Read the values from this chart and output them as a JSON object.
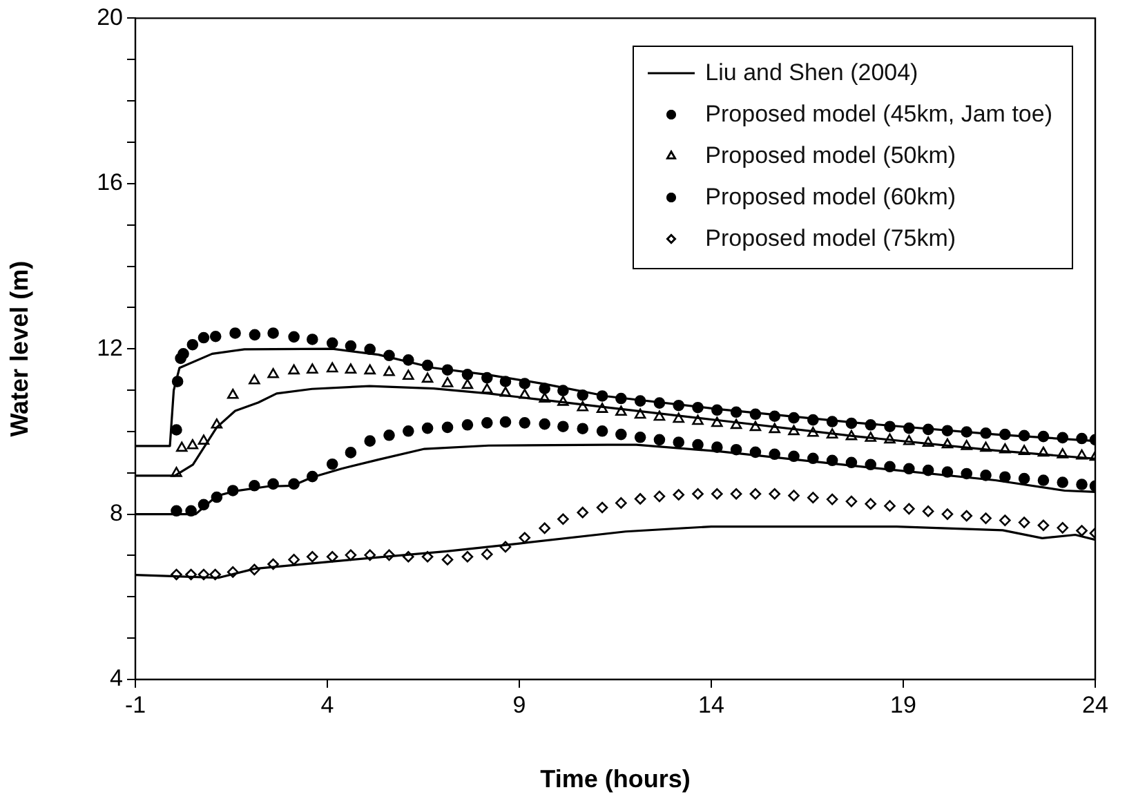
{
  "chart_data": {
    "type": "line",
    "xlabel": "Time (hours)",
    "ylabel": "Water level (m)",
    "xlim": [
      -1,
      24
    ],
    "xticks": [
      -1,
      4,
      9,
      14,
      19,
      24
    ],
    "ylim": [
      4,
      20
    ],
    "yticks": [
      4,
      {
        "value": 5,
        "label": null
      },
      {
        "value": 6,
        "label": null
      },
      {
        "value": 7,
        "label": null
      },
      8,
      {
        "value": 9,
        "label": null
      },
      {
        "value": 10,
        "label": null
      },
      {
        "value": 11,
        "label": null
      },
      12,
      {
        "value": 13,
        "label": null
      },
      {
        "value": 14,
        "label": null
      },
      {
        "value": 15,
        "label": null
      },
      16,
      {
        "value": 17,
        "label": null
      },
      {
        "value": 18,
        "label": null
      },
      {
        "value": 19,
        "label": null
      },
      20
    ],
    "grid": false,
    "legend": "top right",
    "series": [
      {
        "name": "Liu and Shen (2004)",
        "marker": "none",
        "line_style": "solid",
        "color": "#000000",
        "x": [
          -1,
          -0.1,
          0,
          0.15,
          1.0,
          1.84,
          4.13,
          5.33,
          6.77,
          8.2,
          9.66,
          11.3,
          14.2,
          17.8,
          21.4,
          24
        ],
        "values": [
          9.65,
          9.65,
          11.0,
          11.54,
          11.88,
          11.99,
          12.0,
          11.86,
          11.54,
          11.37,
          11.15,
          10.85,
          10.54,
          10.21,
          9.93,
          9.77
        ]
      },
      {
        "marker": "none",
        "line_style": "solid",
        "color": "#000000",
        "x": [
          -1,
          0.03,
          0.5,
          1.12,
          1.6,
          2.2,
          2.68,
          3.6,
          5.1,
          6.77,
          8.2,
          9.66,
          11.3,
          14.2,
          17.8,
          21.4,
          24
        ],
        "values": [
          8.93,
          8.93,
          9.2,
          10.1,
          10.5,
          10.7,
          10.92,
          11.03,
          11.1,
          11.04,
          10.92,
          10.76,
          10.58,
          10.27,
          9.88,
          9.54,
          9.34
        ]
      },
      {
        "marker": "none",
        "line_style": "solid",
        "color": "#000000",
        "x": [
          -1,
          0.57,
          1.12,
          1.6,
          2.44,
          3.1,
          3.6,
          4.37,
          5.33,
          6.53,
          8.2,
          11.3,
          12.05,
          14.2,
          17.8,
          21.4,
          23.2,
          24
        ],
        "values": [
          8.0,
          8.0,
          8.44,
          8.56,
          8.67,
          8.69,
          8.89,
          9.1,
          9.32,
          9.58,
          9.66,
          9.68,
          9.68,
          9.52,
          9.16,
          8.82,
          8.57,
          8.54
        ]
      },
      {
        "marker": "none",
        "line_style": "solid",
        "color": "#000000",
        "x": [
          -1,
          1.16,
          2.11,
          4.52,
          7.11,
          9.0,
          11.77,
          14.0,
          18.83,
          21.59,
          22.62,
          23.48,
          24
        ],
        "values": [
          6.53,
          6.46,
          6.68,
          6.89,
          7.1,
          7.29,
          7.58,
          7.7,
          7.7,
          7.61,
          7.42,
          7.5,
          7.38
        ]
      },
      {
        "name": "Proposed model (45km, Jam toe)",
        "type": "scatter",
        "marker": "circle",
        "color": "#000000",
        "x": [
          0.07,
          0.1,
          0.18,
          0.25,
          0.49,
          0.78,
          1.09,
          1.6,
          2.11,
          2.59,
          3.13,
          3.61,
          4.13,
          4.61,
          5.11,
          5.61,
          6.11,
          6.61,
          7.13,
          7.65,
          8.16,
          8.64,
          9.14,
          9.66,
          10.14,
          10.65,
          11.16,
          11.65,
          12.15,
          12.65,
          13.15,
          13.65,
          14.15,
          14.65,
          15.15,
          15.65,
          16.15,
          16.65,
          17.15,
          17.65,
          18.15,
          18.65,
          19.15,
          19.65,
          20.15,
          20.65,
          21.15,
          21.65,
          22.15,
          22.65,
          23.15,
          23.65,
          24
        ],
        "values": [
          10.04,
          11.21,
          11.77,
          11.88,
          12.1,
          12.27,
          12.3,
          12.38,
          12.34,
          12.38,
          12.29,
          12.23,
          12.14,
          12.07,
          11.99,
          11.84,
          11.73,
          11.6,
          11.49,
          11.38,
          11.3,
          11.21,
          11.16,
          11.04,
          10.99,
          10.88,
          10.86,
          10.8,
          10.74,
          10.69,
          10.63,
          10.58,
          10.52,
          10.47,
          10.42,
          10.37,
          10.33,
          10.28,
          10.24,
          10.2,
          10.16,
          10.12,
          10.08,
          10.05,
          10.02,
          9.99,
          9.96,
          9.93,
          9.9,
          9.88,
          9.85,
          9.83,
          9.8
        ]
      },
      {
        "name": "Proposed model (50km)",
        "type": "scatter",
        "marker": "triangle",
        "color": "#000000",
        "x": [
          0.07,
          0.21,
          0.49,
          0.78,
          1.12,
          1.54,
          2.1,
          2.59,
          3.13,
          3.61,
          4.13,
          4.61,
          5.11,
          5.61,
          6.11,
          6.61,
          7.13,
          7.65,
          8.16,
          8.64,
          9.14,
          9.66,
          10.14,
          10.65,
          11.16,
          11.65,
          12.15,
          12.65,
          13.15,
          13.65,
          14.15,
          14.65,
          15.15,
          15.65,
          16.15,
          16.65,
          17.15,
          17.65,
          18.15,
          18.65,
          19.15,
          19.65,
          20.15,
          20.65,
          21.15,
          21.65,
          22.15,
          22.65,
          23.15,
          23.65,
          24
        ],
        "values": [
          8.99,
          9.6,
          9.66,
          9.77,
          10.16,
          10.88,
          11.23,
          11.38,
          11.47,
          11.49,
          11.52,
          11.49,
          11.47,
          11.43,
          11.34,
          11.27,
          11.16,
          11.12,
          11.01,
          10.93,
          10.88,
          10.79,
          10.71,
          10.58,
          10.54,
          10.47,
          10.4,
          10.35,
          10.3,
          10.25,
          10.2,
          10.15,
          10.1,
          10.05,
          10.0,
          9.96,
          9.92,
          9.88,
          9.84,
          9.8,
          9.76,
          9.72,
          9.68,
          9.64,
          9.6,
          9.56,
          9.52,
          9.48,
          9.44,
          9.41,
          9.38
        ]
      },
      {
        "name": "Proposed model (60km)",
        "type": "scatter",
        "marker": "circle",
        "color": "#000000",
        "x": [
          0.07,
          0.45,
          0.78,
          1.12,
          1.54,
          2.1,
          2.59,
          3.13,
          3.61,
          4.13,
          4.61,
          5.11,
          5.61,
          6.11,
          6.61,
          7.13,
          7.65,
          8.16,
          8.64,
          9.14,
          9.66,
          10.14,
          10.65,
          11.16,
          11.65,
          12.15,
          12.65,
          13.15,
          13.65,
          14.15,
          14.65,
          15.15,
          15.65,
          16.15,
          16.65,
          17.15,
          17.65,
          18.15,
          18.65,
          19.15,
          19.65,
          20.15,
          20.65,
          21.15,
          21.65,
          22.15,
          22.65,
          23.15,
          23.65,
          24
        ],
        "values": [
          8.08,
          8.08,
          8.23,
          8.41,
          8.57,
          8.69,
          8.73,
          8.73,
          8.91,
          9.21,
          9.49,
          9.77,
          9.91,
          10.01,
          10.08,
          10.1,
          10.16,
          10.21,
          10.23,
          10.21,
          10.18,
          10.12,
          10.07,
          10.01,
          9.93,
          9.86,
          9.8,
          9.74,
          9.68,
          9.62,
          9.56,
          9.5,
          9.45,
          9.4,
          9.35,
          9.3,
          9.25,
          9.2,
          9.15,
          9.1,
          9.06,
          9.02,
          8.98,
          8.94,
          8.9,
          8.86,
          8.82,
          8.77,
          8.72,
          8.68
        ]
      },
      {
        "name": "Proposed model (75km)",
        "type": "scatter",
        "marker": "diamond",
        "color": "#000000",
        "x": [
          0.07,
          0.45,
          0.78,
          1.08,
          1.54,
          2.1,
          2.59,
          3.13,
          3.61,
          4.13,
          4.61,
          5.11,
          5.61,
          6.11,
          6.61,
          7.13,
          7.65,
          8.16,
          8.64,
          9.14,
          9.66,
          10.14,
          10.65,
          11.16,
          11.65,
          12.15,
          12.65,
          13.15,
          13.65,
          14.15,
          14.65,
          15.15,
          15.65,
          16.15,
          16.65,
          17.15,
          17.65,
          18.15,
          18.65,
          19.15,
          19.65,
          20.15,
          20.65,
          21.15,
          21.65,
          22.15,
          22.65,
          23.15,
          23.65,
          24
        ],
        "values": [
          6.54,
          6.54,
          6.54,
          6.54,
          6.6,
          6.66,
          6.79,
          6.9,
          6.97,
          6.97,
          7.01,
          7.01,
          7.01,
          6.97,
          6.97,
          6.9,
          6.97,
          7.03,
          7.21,
          7.43,
          7.66,
          7.88,
          8.04,
          8.16,
          8.27,
          8.37,
          8.43,
          8.47,
          8.49,
          8.49,
          8.49,
          8.49,
          8.49,
          8.45,
          8.4,
          8.36,
          8.31,
          8.25,
          8.2,
          8.13,
          8.07,
          8.0,
          7.96,
          7.9,
          7.85,
          7.8,
          7.73,
          7.67,
          7.6,
          7.54
        ]
      }
    ]
  }
}
